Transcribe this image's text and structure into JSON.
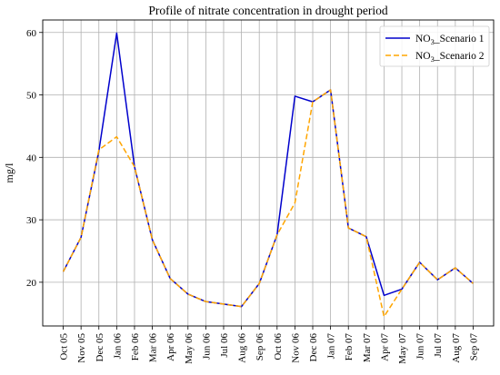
{
  "chart_data": {
    "type": "line",
    "title": "Profile of nitrate concentration in drought period",
    "xlabel": "",
    "ylabel": "mg/l",
    "categories": [
      "Oct 05",
      "Nov 05",
      "Dec 05",
      "Jan 06",
      "Feb 06",
      "Mar 06",
      "Apr 06",
      "May 06",
      "Jun 06",
      "Jul 06",
      "Aug 06",
      "Sep 06",
      "Oct 06",
      "Nov 06",
      "Dec 06",
      "Jan 07",
      "Feb 07",
      "Mar 07",
      "Apr 07",
      "May 07",
      "Jun 07",
      "Jul 07",
      "Aug 07",
      "Sep 07"
    ],
    "ylim": [
      13,
      62
    ],
    "yticks": [
      20,
      30,
      40,
      50,
      60
    ],
    "grid": true,
    "legend_position": "top-right",
    "series": [
      {
        "name_prefix": "NO",
        "name_subscript": "3",
        "name_suffix": "_Scenario 1",
        "color": "#0000cc",
        "style": "solid",
        "values": [
          21.7,
          27.2,
          41.0,
          59.9,
          38.5,
          26.8,
          20.6,
          18.1,
          16.9,
          16.5,
          16.1,
          19.8,
          27.6,
          49.8,
          48.9,
          50.8,
          28.7,
          27.3,
          17.9,
          18.9,
          23.2,
          20.4,
          22.3,
          19.8
        ]
      },
      {
        "name_prefix": "NO",
        "name_subscript": "3",
        "name_suffix": "_Scenario 2",
        "color": "#ffa500",
        "style": "dashed",
        "values": [
          21.7,
          27.2,
          41.2,
          43.3,
          38.5,
          26.8,
          20.6,
          18.1,
          16.9,
          16.5,
          16.1,
          19.8,
          27.6,
          32.7,
          48.9,
          50.8,
          28.7,
          27.3,
          14.5,
          18.9,
          23.2,
          20.4,
          22.3,
          19.8
        ]
      }
    ]
  }
}
